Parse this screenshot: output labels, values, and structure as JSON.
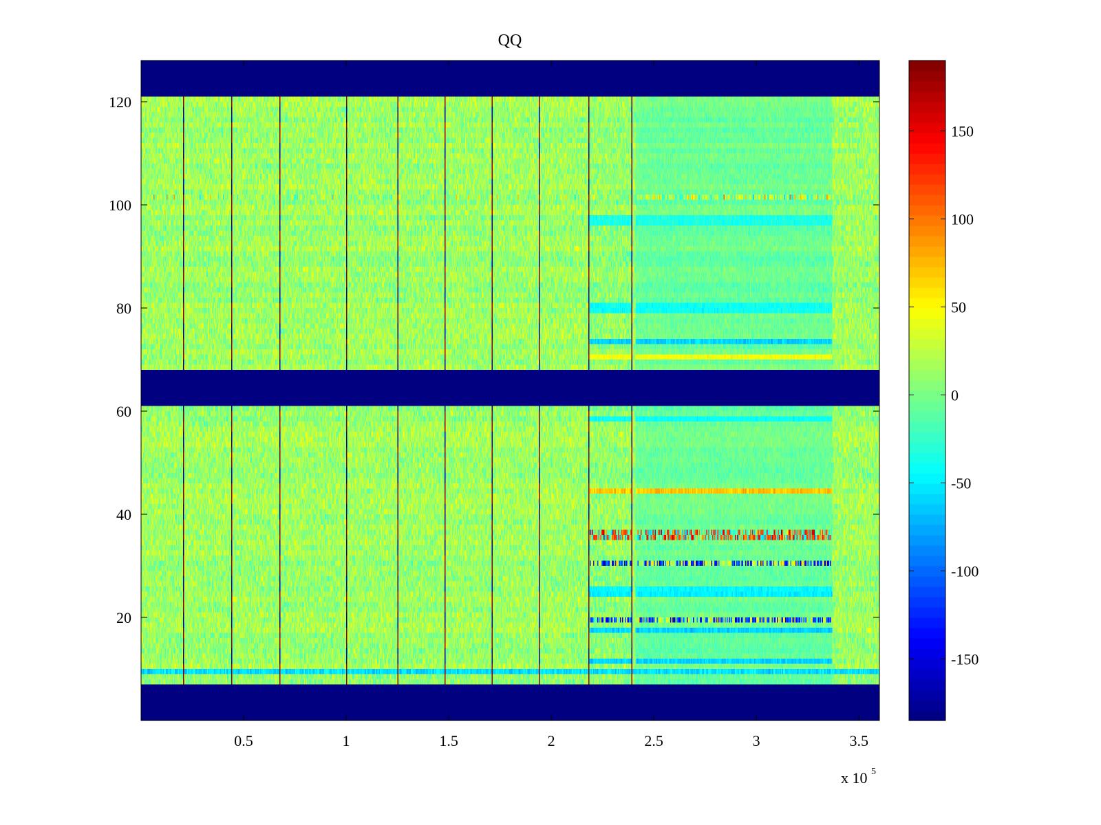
{
  "chart_data": {
    "type": "heatmap",
    "title": "QQ",
    "xlabel": "",
    "ylabel": "",
    "xlim": [
      0,
      360000
    ],
    "ylim": [
      0,
      128
    ],
    "x_exponent_label": "x 10",
    "x_exponent_value": "5",
    "x_ticks": [
      {
        "value": 50000,
        "label": "0.5"
      },
      {
        "value": 100000,
        "label": "1"
      },
      {
        "value": 150000,
        "label": "1.5"
      },
      {
        "value": 200000,
        "label": "2"
      },
      {
        "value": 250000,
        "label": "2.5"
      },
      {
        "value": 300000,
        "label": "3"
      },
      {
        "value": 350000,
        "label": "3.5"
      }
    ],
    "y_ticks": [
      {
        "value": 20,
        "label": "20"
      },
      {
        "value": 40,
        "label": "40"
      },
      {
        "value": 60,
        "label": "60"
      },
      {
        "value": 80,
        "label": "80"
      },
      {
        "value": 100,
        "label": "100"
      },
      {
        "value": 120,
        "label": "120"
      }
    ],
    "colormap": "jet",
    "clim": [
      -185,
      190
    ],
    "colorbar_ticks": [
      {
        "value": 150,
        "label": "150"
      },
      {
        "value": 100,
        "label": "100"
      },
      {
        "value": 50,
        "label": "50"
      },
      {
        "value": 0,
        "label": "0"
      },
      {
        "value": -50,
        "label": "-50"
      },
      {
        "value": -100,
        "label": "-100"
      },
      {
        "value": -150,
        "label": "-150"
      }
    ],
    "background_value": -185,
    "grid": false,
    "masked_row_bands": [
      [
        0,
        7
      ],
      [
        61,
        68
      ],
      [
        121,
        128
      ]
    ],
    "data_row_bands": [
      [
        7,
        61
      ],
      [
        68,
        121
      ]
    ],
    "vertical_spike_lines_x": [
      20500,
      44000,
      67500,
      100000,
      125000,
      148000,
      171000,
      194000,
      218000,
      239000
    ],
    "quiet_region_x": [
      218000,
      239000
    ],
    "structured_region_x": [
      241000,
      337000
    ],
    "structured_rows": [
      {
        "row": 101,
        "mean": 40,
        "spread": 90,
        "extent": "full"
      },
      {
        "row": 96,
        "mean": -35,
        "spread": 12,
        "extent": "structured"
      },
      {
        "row": 97,
        "mean": -35,
        "spread": 12,
        "extent": "structured"
      },
      {
        "row": 79,
        "mean": -40,
        "spread": 12,
        "extent": "structured"
      },
      {
        "row": 80,
        "mean": -40,
        "spread": 12,
        "extent": "structured"
      },
      {
        "row": 73,
        "mean": -60,
        "spread": 15,
        "extent": "structured"
      },
      {
        "row": 70,
        "mean": 45,
        "spread": 12,
        "extent": "structured"
      },
      {
        "row": 58,
        "mean": -40,
        "spread": 10,
        "extent": "structured"
      },
      {
        "row": 44,
        "mean": 70,
        "spread": 20,
        "extent": "structured"
      },
      {
        "row": 36,
        "mean": 120,
        "spread": 60,
        "extent": "structured"
      },
      {
        "row": 35,
        "mean": 120,
        "spread": 60,
        "extent": "structured"
      },
      {
        "row": 30,
        "mean": -120,
        "spread": 110,
        "extent": "structured"
      },
      {
        "row": 25,
        "mean": -45,
        "spread": 12,
        "extent": "structured"
      },
      {
        "row": 24,
        "mean": -50,
        "spread": 12,
        "extent": "structured"
      },
      {
        "row": 19,
        "mean": -120,
        "spread": 100,
        "extent": "structured"
      },
      {
        "row": 17,
        "mean": -60,
        "spread": 15,
        "extent": "structured"
      },
      {
        "row": 11,
        "mean": -60,
        "spread": 15,
        "extent": "structured"
      },
      {
        "row": 9,
        "mean": -55,
        "spread": 20,
        "extent": "full"
      }
    ]
  }
}
